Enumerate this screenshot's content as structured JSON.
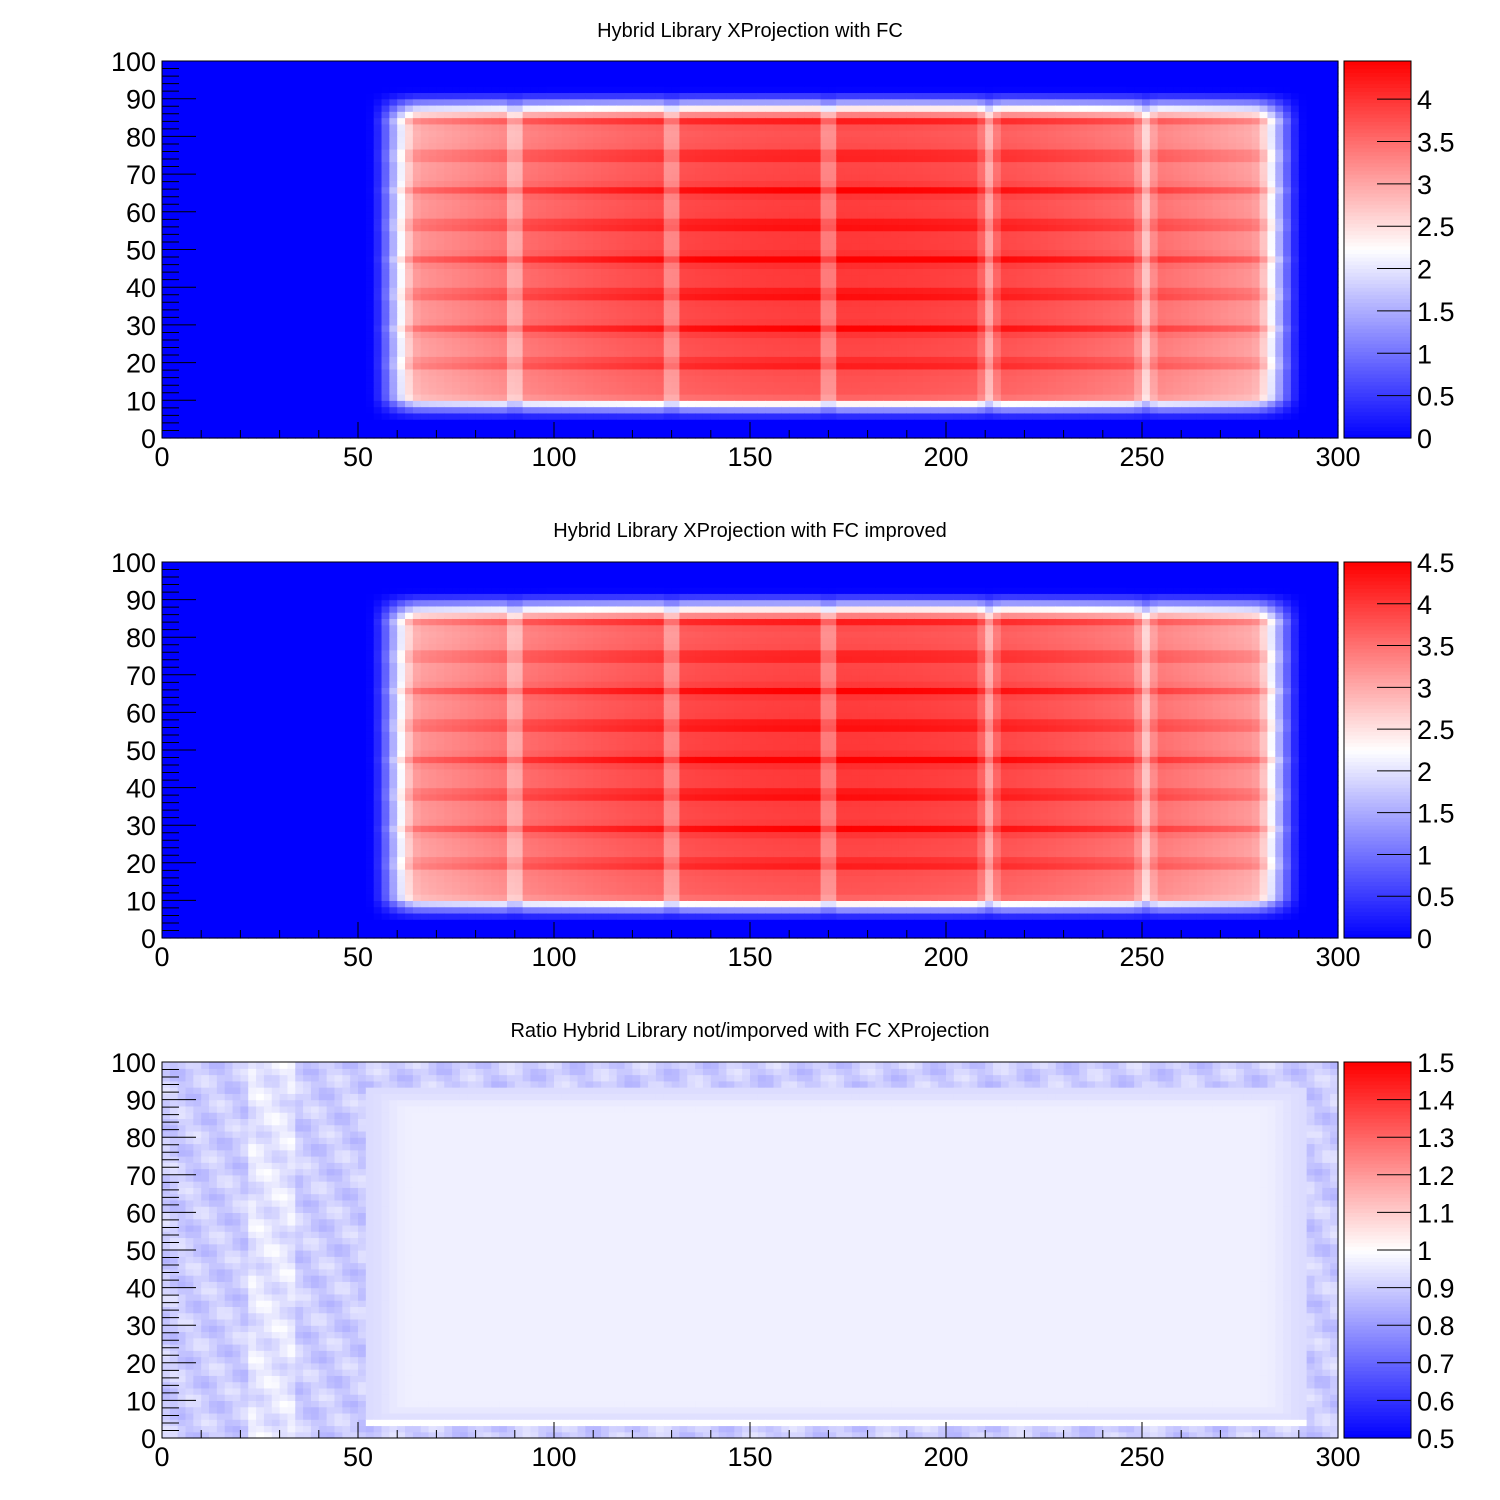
{
  "chart_data": [
    {
      "type": "heatmap",
      "title": "Hybrid Library XProjection with FC",
      "xlabel": "",
      "ylabel": "",
      "xlim": [
        0,
        300
      ],
      "ylim": [
        0,
        100
      ],
      "x_ticks": [
        "0",
        "50",
        "100",
        "150",
        "200",
        "250",
        "300"
      ],
      "y_ticks": [
        "0",
        "10",
        "20",
        "30",
        "40",
        "50",
        "60",
        "70",
        "80",
        "90",
        "100"
      ],
      "colorbar": {
        "min": 0,
        "max": 4.45,
        "ticks": [
          "0",
          "0.5",
          "1",
          "1.5",
          "2",
          "2.5",
          "3",
          "3.5",
          "4"
        ]
      },
      "colors": {
        "low": "#0000ff",
        "mid": "#ffffff",
        "high": "#ff0000"
      },
      "field": {
        "x_range": [
          52,
          292
        ],
        "y_range": [
          4,
          93
        ],
        "background": 0.0,
        "peak": 4.4,
        "segment_boundaries": [
          90,
          130,
          170,
          211,
          251
        ],
        "band_spacing": 9.2
      }
    },
    {
      "type": "heatmap",
      "title": "Hybrid Library XProjection with FC improved",
      "xlabel": "",
      "ylabel": "",
      "xlim": [
        0,
        300
      ],
      "ylim": [
        0,
        100
      ],
      "x_ticks": [
        "0",
        "50",
        "100",
        "150",
        "200",
        "250",
        "300"
      ],
      "y_ticks": [
        "0",
        "10",
        "20",
        "30",
        "40",
        "50",
        "60",
        "70",
        "80",
        "90",
        "100"
      ],
      "colorbar": {
        "min": 0,
        "max": 4.5,
        "ticks": [
          "0",
          "0.5",
          "1",
          "1.5",
          "2",
          "2.5",
          "3",
          "3.5",
          "4",
          "4.5"
        ]
      },
      "colors": {
        "low": "#0000ff",
        "mid": "#ffffff",
        "high": "#ff0000"
      },
      "field": {
        "x_range": [
          52,
          292
        ],
        "y_range": [
          4,
          93
        ],
        "background": 0.0,
        "peak": 4.45,
        "segment_boundaries": [
          90,
          130,
          170,
          211,
          251
        ],
        "band_spacing": 9.2
      }
    },
    {
      "type": "heatmap",
      "title": "Ratio Hybrid  Library not/imporved with FC XProjection",
      "xlabel": "",
      "ylabel": "",
      "xlim": [
        0,
        300
      ],
      "ylim": [
        0,
        100
      ],
      "x_ticks": [
        "0",
        "50",
        "100",
        "150",
        "200",
        "250",
        "300"
      ],
      "y_ticks": [
        "0",
        "10",
        "20",
        "30",
        "40",
        "50",
        "60",
        "70",
        "80",
        "90",
        "100"
      ],
      "colorbar": {
        "min": 0.5,
        "max": 1.5,
        "ticks": [
          "0.5",
          "0.6",
          "0.7",
          "0.8",
          "0.9",
          "1",
          "1.1",
          "1.2",
          "1.3",
          "1.4",
          "1.5"
        ]
      },
      "colors": {
        "low": "#0000ff",
        "mid": "#ffffff",
        "high": "#ff0000"
      },
      "field": {
        "x_range": [
          52,
          292
        ],
        "y_range": [
          4,
          93
        ],
        "inside_value": 0.97,
        "outside_value": 0.9,
        "border_value": 1.0
      }
    }
  ]
}
